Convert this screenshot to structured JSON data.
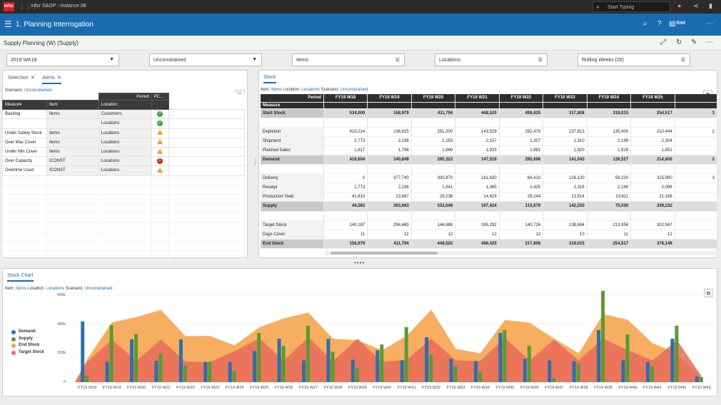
{
  "topbar": {
    "logo": "infor",
    "app_title": "Infor S&OP - Instance 08",
    "search_placeholder": "Start Typing"
  },
  "header": {
    "title": "1. Planning Interrogation",
    "xml_label": "Xml"
  },
  "subheader": {
    "title": "Supply Planning (W) (Supply)"
  },
  "filters": [
    {
      "value": "2019 WK18",
      "kind": "dropdown"
    },
    {
      "value": "Unconstrained",
      "kind": "dropdown"
    },
    {
      "value": "Items",
      "kind": "filter"
    },
    {
      "value": "Locations",
      "kind": "filter"
    },
    {
      "value": "Rolling Weeks (26)",
      "kind": "filter"
    }
  ],
  "alerts_panel": {
    "tabs": [
      {
        "label": "Selection"
      },
      {
        "label": "Alerts"
      }
    ],
    "scenario_label": "Scenario:",
    "scenario_value": "Unconstrained",
    "period_header": "Period",
    "pc_header": "PC...",
    "columns": [
      "Measure",
      "Item",
      "Location"
    ],
    "rows": [
      {
        "measure": "Backlog",
        "item": "Items",
        "location": "Customers",
        "status": "ok"
      },
      {
        "measure": "",
        "item": "",
        "location": "Locations",
        "status": "ok"
      },
      {
        "measure": "Under Safety Stock",
        "item": "Items",
        "location": "Locations",
        "status": "warning"
      },
      {
        "measure": "Over Max Cover",
        "item": "Items",
        "location": "Locations",
        "status": "warning"
      },
      {
        "measure": "Under Min Cover",
        "item": "Items",
        "location": "Locations",
        "status": "warning"
      },
      {
        "measure": "Over Capacity",
        "item": "ICONST",
        "location": "Locations",
        "status": "error"
      },
      {
        "measure": "Overtime Used",
        "item": "ICONST",
        "location": "Locations",
        "status": "warning"
      }
    ]
  },
  "stock_panel": {
    "tab": "Stock",
    "context": {
      "item_label": "Item:",
      "item_value": "Items",
      "location_label": "Location:",
      "location_value": "Locations",
      "scenario_label": "Scenario:",
      "scenario_value": "Unconstrained"
    },
    "period_header": "Period",
    "measure_header": "Measure",
    "columns": [
      "FY19 W18",
      "FY19 W19",
      "FY19 W20",
      "FY19 W21",
      "FY19 W22",
      "FY19 W23",
      "FY19 W24",
      "FY19 W25",
      ""
    ],
    "rows": [
      {
        "label": "Start Stock",
        "bold": true,
        "values": [
          "534,000",
          "158,979",
          "411,794",
          "448,520",
          "498,425",
          "317,808",
          "319,015",
          "254,517",
          "3"
        ]
      },
      {
        "label": "",
        "spacer": true,
        "values": [
          "",
          "",
          "",
          "",
          "",
          "",
          "",
          "",
          ""
        ]
      },
      {
        "label": "Depletion",
        "values": [
          "415,014",
          "136,815",
          "291,200",
          "143,529",
          "292,478",
          "137,813",
          "135,400",
          "210,444",
          "2"
        ]
      },
      {
        "label": "Shipment",
        "values": [
          "2,773",
          "2,236",
          "2,253",
          "2,157",
          "1,327",
          "1,310",
          "2,199",
          "2,304",
          ""
        ]
      },
      {
        "label": "Planned Sales",
        "values": [
          "1,817",
          "1,798",
          "1,869",
          "1,833",
          "1,891",
          "1,920",
          "1,928",
          "1,852",
          ""
        ]
      },
      {
        "label": "Demand",
        "bold": true,
        "values": [
          "419,604",
          "140,849",
          "295,322",
          "147,519",
          "295,696",
          "141,043",
          "139,527",
          "214,600",
          "2"
        ]
      },
      {
        "label": "",
        "spacer": true,
        "values": [
          "",
          "",
          "",
          "",
          "",
          "",
          "",
          "",
          ""
        ]
      },
      {
        "label": "Delivery",
        "values": [
          "0",
          "377,740",
          "300,870",
          "181,630",
          "84,410",
          "126,120",
          "59,220",
          "315,980",
          "3"
        ]
      },
      {
        "label": "Receipt",
        "values": [
          "2,773",
          "2,236",
          "1,941",
          "1,365",
          "1,425",
          "2,316",
          "2,199",
          "2,096",
          ""
        ]
      },
      {
        "label": "Production Yield",
        "values": [
          "41,810",
          "13,687",
          "29,238",
          "14,429",
          "29,244",
          "13,514",
          "13,611",
          "21,156",
          ""
        ]
      },
      {
        "label": "Supply",
        "bold": true,
        "values": [
          "44,583",
          "393,663",
          "332,049",
          "197,424",
          "115,079",
          "142,250",
          "75,030",
          "339,232",
          ""
        ]
      },
      {
        "label": "",
        "spacer": true,
        "values": [
          "",
          "",
          "",
          "",
          "",
          "",
          "",
          "",
          ""
        ]
      },
      {
        "label": "Target Stock",
        "values": [
          "140,187",
          "294,669",
          "146,688",
          "295,292",
          "140,726",
          "138,884",
          "213,956",
          "302,947",
          ""
        ]
      },
      {
        "label": "Days Cover",
        "values": [
          "11",
          "12",
          "12",
          "12",
          "12",
          "10",
          "11",
          "12",
          ""
        ]
      },
      {
        "label": "End Stock",
        "bold": true,
        "values": [
          "158,979",
          "411,794",
          "448,520",
          "498,425",
          "317,808",
          "319,015",
          "254,517",
          "378,149",
          ""
        ]
      }
    ]
  },
  "chart_panel": {
    "tab": "Stock Chart",
    "context": {
      "item_label": "Item:",
      "item_value": "Items",
      "location_label": "Location:",
      "location_value": "Locations",
      "scenario_label": "Scenario:",
      "scenario_value": "Unconstrained"
    }
  },
  "chart_data": {
    "type": "bar",
    "y_ticks": [
      "600k",
      "400k",
      "200k",
      "0"
    ],
    "ylim": [
      0,
      600000
    ],
    "categories": [
      "FY19 W18",
      "FY19 W19",
      "FY19 W20",
      "FY19 W21",
      "FY19 W22",
      "FY19 W23",
      "FY19 W24",
      "FY19 W25",
      "FY19 W26",
      "FY19 W27",
      "FY19 W28",
      "FY19 W29",
      "FY19 W30",
      "FY19 W31",
      "FY19 W32",
      "FY19 W33",
      "FY19 W34",
      "FY19 W35",
      "FY19 W36",
      "FY19 W37",
      "FY19 W38",
      "FY19 W39",
      "FY19 W40",
      "FY19 W41",
      "FY19 W42",
      "FY19 W43"
    ],
    "series": [
      {
        "name": "Demand",
        "color": "#2f6fa8",
        "kind": "bar",
        "values": [
          419604,
          140849,
          295322,
          147519,
          295696,
          141043,
          139527,
          214600,
          300000,
          150000,
          300000,
          155000,
          220000,
          150000,
          310000,
          160000,
          145000,
          340000,
          160000,
          150000,
          145000,
          360000,
          150000,
          140000,
          300000,
          40000
        ]
      },
      {
        "name": "Supply",
        "color": "#5a9a32",
        "kind": "bar",
        "values": [
          44583,
          393663,
          332049,
          197424,
          115079,
          142250,
          75030,
          339232,
          250000,
          390000,
          210000,
          100000,
          260000,
          380000,
          190000,
          110000,
          70000,
          360000,
          250000,
          30000,
          130000,
          630000,
          330000,
          110000,
          390000,
          35000
        ]
      },
      {
        "name": "End Stock",
        "color": "#f7a044",
        "kind": "area",
        "values": [
          158979,
          411794,
          448520,
          498425,
          317808,
          319015,
          254517,
          378149,
          440000,
          480000,
          300000,
          290000,
          220000,
          320000,
          500000,
          230000,
          200000,
          430000,
          410000,
          300000,
          200000,
          470000,
          430000,
          270000,
          200000,
          20000
        ]
      },
      {
        "name": "Target Stock",
        "color": "#e86b5a",
        "kind": "area",
        "values": [
          140187,
          294669,
          146688,
          295292,
          140726,
          138884,
          213956,
          302947,
          150000,
          310000,
          145000,
          300000,
          140000,
          155000,
          300000,
          150000,
          148000,
          305000,
          150000,
          295000,
          150000,
          300000,
          220000,
          150000,
          290000,
          40000
        ]
      }
    ]
  }
}
